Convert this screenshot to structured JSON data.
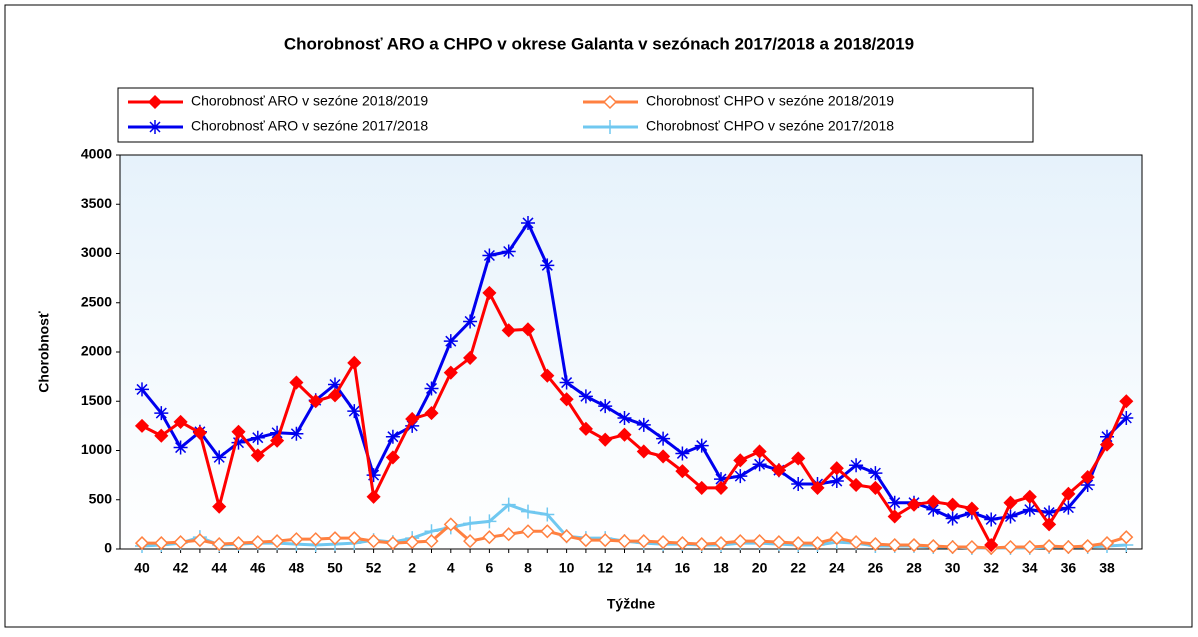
{
  "chart_data": {
    "type": "line",
    "title": "Chorobnosť ARO a CHPO v okrese Galanta v sezónach 2017/2018 a 2018/2019",
    "x_label": "Týždne",
    "y_label": "Chorobnosť",
    "categories": [
      "40",
      null,
      "42",
      null,
      "44",
      null,
      "46",
      null,
      "48",
      null,
      "50",
      null,
      "52",
      null,
      "2",
      null,
      "4",
      null,
      "6",
      null,
      "8",
      null,
      "10",
      null,
      "12",
      null,
      "14",
      null,
      "16",
      null,
      "18",
      null,
      "20",
      null,
      "22",
      null,
      "24",
      null,
      "26",
      null,
      "28",
      null,
      "30",
      null,
      "32",
      null,
      "34",
      null,
      "36",
      null,
      "38",
      null
    ],
    "ylim": [
      0,
      4000
    ],
    "yticks": [
      0,
      500,
      1000,
      1500,
      2000,
      2500,
      3000,
      3500,
      4000
    ],
    "grid": false,
    "series": [
      {
        "name": "Chorobnosť ARO v sezóne 2018/2019",
        "color": "#ff0000",
        "marker": "diamond",
        "values": [
          1250,
          1150,
          1290,
          1180,
          430,
          1190,
          950,
          1100,
          1690,
          1500,
          1560,
          1890,
          530,
          930,
          1320,
          1380,
          1790,
          1940,
          2600,
          2220,
          2230,
          1760,
          1520,
          1220,
          1110,
          1160,
          990,
          940,
          790,
          620,
          620,
          900,
          990,
          800,
          920,
          620,
          820,
          650,
          620,
          330,
          450,
          480,
          450,
          410,
          40,
          470,
          530,
          250,
          560,
          730,
          1060,
          1500
        ]
      },
      {
        "name": "Chorobnosť ARO v sezóne 2017/2018",
        "color": "#0000ee",
        "marker": "star",
        "values": [
          1620,
          1380,
          1030,
          1190,
          930,
          1080,
          1130,
          1180,
          1170,
          1510,
          1670,
          1400,
          750,
          1140,
          1250,
          1630,
          2110,
          2310,
          2980,
          3020,
          3310,
          2880,
          1690,
          1550,
          1450,
          1330,
          1260,
          1120,
          970,
          1050,
          710,
          740,
          860,
          800,
          660,
          660,
          690,
          850,
          770,
          470,
          470,
          400,
          310,
          370,
          300,
          330,
          400,
          370,
          420,
          650,
          1140,
          1330
        ]
      },
      {
        "name": "Chorobnosť CHPO v sezóne 2018/2019",
        "color": "#ff8040",
        "marker": "hollow-diamond",
        "values": [
          60,
          60,
          70,
          90,
          50,
          60,
          70,
          80,
          100,
          100,
          110,
          110,
          80,
          60,
          70,
          80,
          250,
          80,
          120,
          150,
          180,
          180,
          130,
          90,
          90,
          80,
          80,
          70,
          60,
          50,
          60,
          80,
          80,
          70,
          60,
          60,
          110,
          70,
          50,
          40,
          40,
          30,
          20,
          20,
          10,
          20,
          20,
          30,
          20,
          30,
          60,
          120
        ]
      },
      {
        "name": "Chorobnosť CHPO v sezóne 2017/2018",
        "color": "#70c8f0",
        "marker": "plus",
        "values": [
          30,
          40,
          60,
          120,
          40,
          50,
          60,
          60,
          50,
          40,
          50,
          60,
          90,
          70,
          110,
          180,
          220,
          260,
          280,
          450,
          380,
          350,
          130,
          110,
          110,
          80,
          60,
          50,
          50,
          40,
          40,
          60,
          60,
          50,
          40,
          40,
          70,
          60,
          30,
          30,
          30,
          20,
          20,
          10,
          10,
          10,
          10,
          20,
          20,
          20,
          30,
          40
        ]
      }
    ]
  }
}
